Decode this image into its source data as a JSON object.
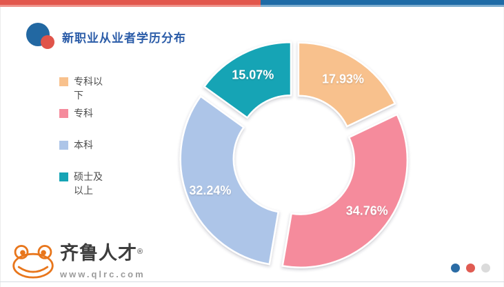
{
  "header": {
    "title": "新职业从业者学历分布"
  },
  "theme": {
    "top_bar_red": "#e2574d",
    "top_bar_red_light": "#ee938b",
    "top_bar_blue": "#1e6ba6",
    "top_bar_blue_light": "#7faecf",
    "title_color": "#2b5ca8",
    "bullet_big": "#2268a2",
    "bullet_small": "#e0544a",
    "legend_text": "#4d4d4d",
    "bottom_line": "#d6dce2"
  },
  "chart_data": {
    "type": "pie",
    "subtype": "exploded-donut",
    "title": "新职业从业者学历分布",
    "categories": [
      "专科以下",
      "专科",
      "本科",
      "硕士及以上"
    ],
    "values": [
      17.93,
      34.76,
      32.24,
      15.07
    ],
    "unit": "%",
    "colors": [
      "#f8c18d",
      "#f58b9c",
      "#adc5e8",
      "#16a4b5"
    ],
    "label_color": "#ffffff",
    "start_angle_deg": 0,
    "clockwise": true,
    "legend_position": "left"
  },
  "footer": {
    "brand": "齐鲁人才",
    "registered": "®",
    "website": "www.qlrc.com",
    "brand_color": "#3d3d3d",
    "website_color": "#9b9b9b",
    "frog_color": "#e8761c",
    "dots": [
      "#2b6ca5",
      "#e05b52",
      "#dbdbdb"
    ]
  }
}
